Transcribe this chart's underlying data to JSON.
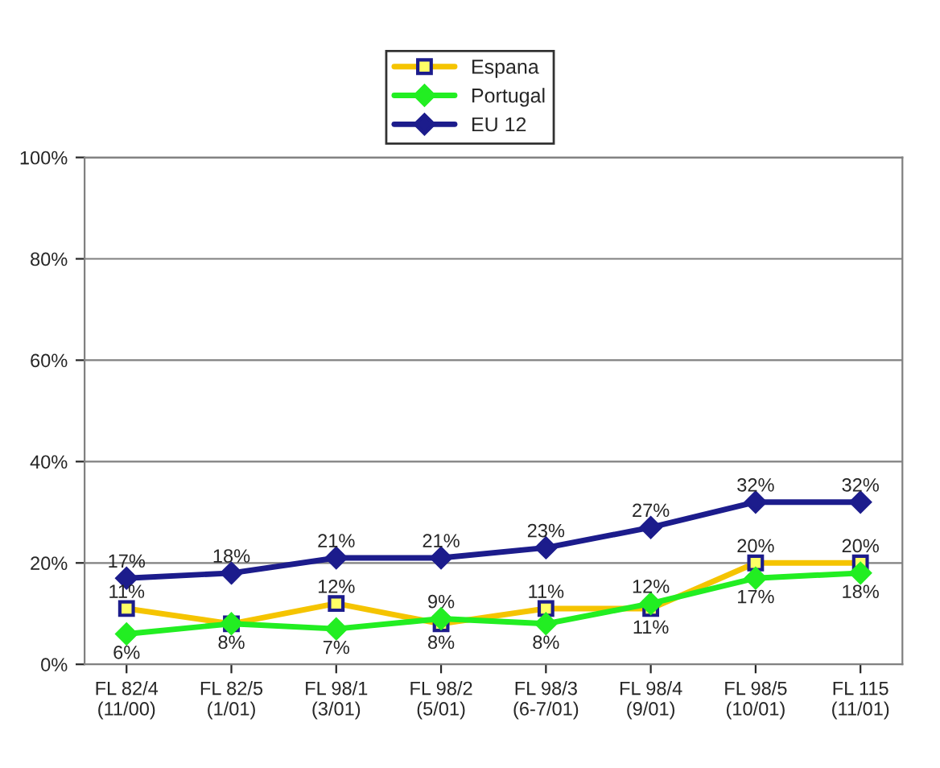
{
  "chart_data": {
    "type": "line",
    "categories": [
      "FL 82/4\n(11/00)",
      "FL 82/5\n(1/01)",
      "FL 98/1\n(3/01)",
      "FL 98/2\n(5/01)",
      "FL 98/3\n(6-7/01)",
      "FL 98/4\n(9/01)",
      "FL 98/5\n(10/01)",
      "FL 115\n(11/01)"
    ],
    "series": [
      {
        "name": "Espana",
        "color": "#f5c400",
        "marker": "square",
        "values": [
          11,
          8,
          12,
          8,
          11,
          11,
          20,
          20
        ],
        "value_labels": [
          "11%",
          "8%",
          "12%",
          "8%",
          "11%",
          "11%",
          "20%",
          "20%"
        ]
      },
      {
        "name": "Portugal",
        "color": "#22ee22",
        "marker": "diamond",
        "values": [
          6,
          8,
          7,
          9,
          8,
          12,
          17,
          18
        ],
        "value_labels": [
          "6%",
          null,
          "7%",
          "9%",
          "8%",
          "12%",
          "17%",
          "18%"
        ]
      },
      {
        "name": "EU 12",
        "color": "#1c1c8c",
        "marker": "diamond",
        "values": [
          17,
          18,
          21,
          21,
          23,
          27,
          32,
          32
        ],
        "value_labels": [
          "17%",
          "18%",
          "21%",
          "21%",
          "23%",
          "27%",
          "32%",
          "32%"
        ]
      }
    ],
    "ylim": [
      0,
      100
    ],
    "yticks": [
      {
        "value": 0,
        "label": "0%"
      },
      {
        "value": 20,
        "label": "20%"
      },
      {
        "value": 40,
        "label": "40%"
      },
      {
        "value": 60,
        "label": "60%"
      },
      {
        "value": 80,
        "label": "80%"
      },
      {
        "value": 100,
        "label": "100%"
      }
    ],
    "grid": "y",
    "legend": "top",
    "line_style": "solid"
  }
}
